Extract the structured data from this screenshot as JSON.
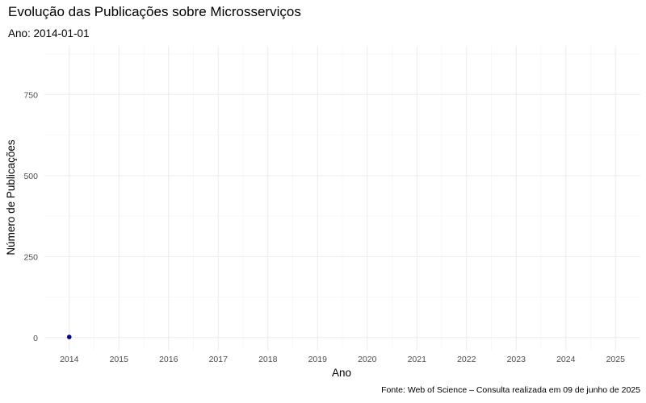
{
  "chart_data": {
    "type": "scatter",
    "title": "Evolução das Publicações sobre Microsserviços",
    "subtitle": "Ano: 2014-01-01",
    "xlabel": "Ano",
    "ylabel": "Número de Publicações",
    "caption": "Fonte: Web of Science – Consulta realizada em 09 de junho de 2025",
    "x_ticks": [
      2014,
      2015,
      2016,
      2017,
      2018,
      2019,
      2020,
      2021,
      2022,
      2023,
      2024,
      2025
    ],
    "y_ticks": [
      0,
      250,
      500,
      750
    ],
    "xlim": [
      2013.5,
      2025.5
    ],
    "ylim": [
      -40,
      900
    ],
    "grid": true,
    "point_color": "#00008B",
    "series": [
      {
        "x": [
          2014
        ],
        "y": [
          2
        ]
      }
    ]
  }
}
